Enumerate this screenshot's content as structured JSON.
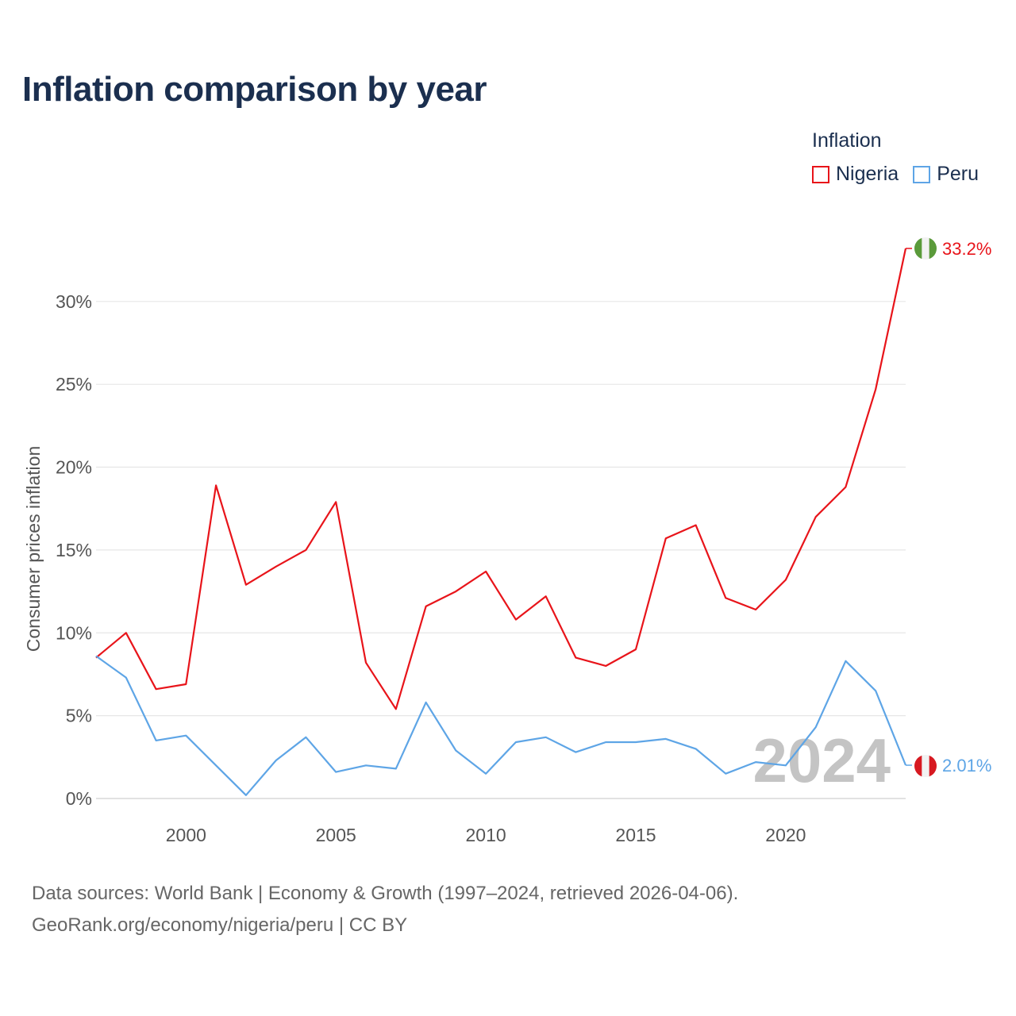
{
  "chart_data": {
    "type": "line",
    "title": "Inflation comparison by year",
    "legend_title": "Inflation",
    "legend_position": "top-right",
    "ylabel": "Consumer prices inflation",
    "xlabel": "",
    "x": [
      1997,
      1998,
      1999,
      2000,
      2001,
      2002,
      2003,
      2004,
      2005,
      2006,
      2007,
      2008,
      2009,
      2010,
      2011,
      2012,
      2013,
      2014,
      2015,
      2016,
      2017,
      2018,
      2019,
      2020,
      2021,
      2022,
      2023,
      2024
    ],
    "xlim": [
      1997,
      2024
    ],
    "ylim": [
      0,
      33.2
    ],
    "xticks": [
      2000,
      2005,
      2010,
      2015,
      2020
    ],
    "xtick_labels": [
      "2000",
      "2005",
      "2010",
      "2015",
      "2020"
    ],
    "yticks": [
      0,
      5,
      10,
      15,
      20,
      25,
      30
    ],
    "ytick_labels": [
      "0%",
      "5%",
      "10%",
      "15%",
      "20%",
      "25%",
      "30%"
    ],
    "grid": true,
    "year_watermark": "2024",
    "series": [
      {
        "name": "Nigeria",
        "color": "#e8141a",
        "flag": "nigeria-flag",
        "end_label": "33.2%",
        "values": [
          8.5,
          10.0,
          6.6,
          6.9,
          18.9,
          12.9,
          14.0,
          15.0,
          17.9,
          8.2,
          5.4,
          11.6,
          12.5,
          13.7,
          10.8,
          12.2,
          8.5,
          8.0,
          9.0,
          15.7,
          16.5,
          12.1,
          11.4,
          13.2,
          17.0,
          18.8,
          24.7,
          33.2
        ]
      },
      {
        "name": "Peru",
        "color": "#5ea5e6",
        "flag": "peru-flag",
        "end_label": "2.01%",
        "values": [
          8.6,
          7.3,
          3.5,
          3.8,
          2.0,
          0.2,
          2.3,
          3.7,
          1.6,
          2.0,
          1.8,
          5.8,
          2.9,
          1.5,
          3.4,
          3.7,
          2.8,
          3.4,
          3.4,
          3.6,
          3.0,
          1.5,
          2.2,
          2.0,
          4.3,
          8.3,
          6.5,
          2.01
        ]
      }
    ]
  },
  "footer": {
    "line1": "Data sources: World Bank | Economy & Growth (1997–2024, retrieved 2026-04-06).",
    "line2": "GeoRank.org/economy/nigeria/peru | CC BY"
  }
}
